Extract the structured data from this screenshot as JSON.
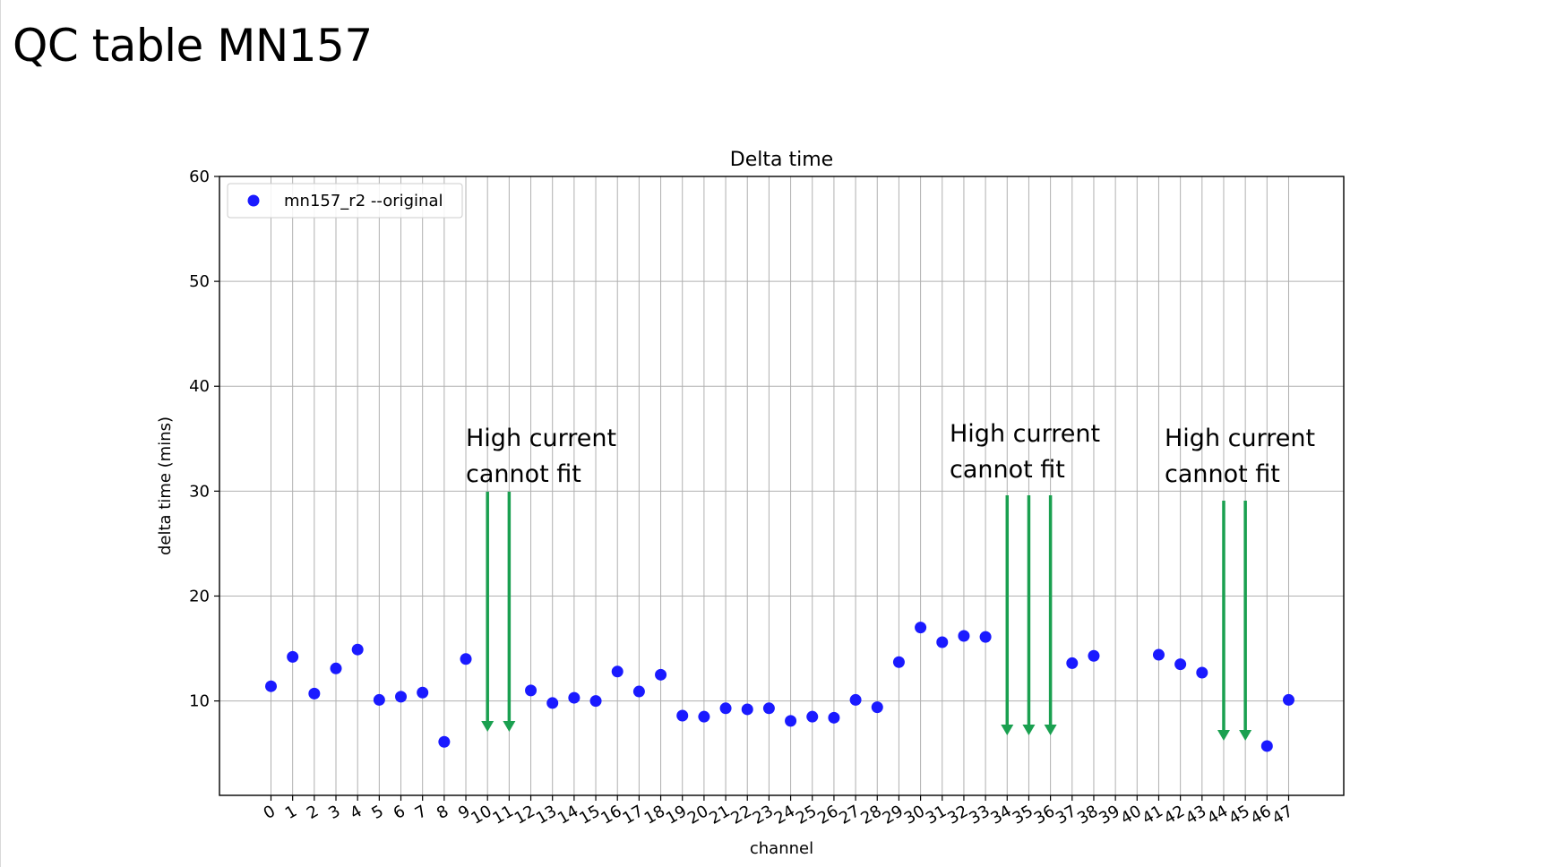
{
  "slide": {
    "title": "QC table MN157"
  },
  "colors": {
    "points": "#1a1aff",
    "arrows": "#1aa050",
    "grid": "#b0b0b0",
    "axes": "#000000"
  },
  "chart_data": {
    "type": "scatter",
    "title": "Delta time",
    "xlabel": "channel",
    "ylabel": "delta time (mins)",
    "ylim": [
      1,
      60
    ],
    "yticks": [
      10,
      20,
      30,
      40,
      50,
      60
    ],
    "xticks": [
      0,
      1,
      2,
      3,
      4,
      5,
      6,
      7,
      8,
      9,
      10,
      11,
      12,
      13,
      14,
      15,
      16,
      17,
      18,
      19,
      20,
      21,
      22,
      23,
      24,
      25,
      26,
      27,
      28,
      29,
      30,
      31,
      32,
      33,
      34,
      35,
      36,
      37,
      38,
      39,
      40,
      41,
      42,
      43,
      44,
      45,
      46,
      47
    ],
    "xtick_labels": [
      "0",
      "1",
      "2",
      "3",
      "4",
      "5",
      "6",
      "7",
      "8",
      "9",
      "10",
      "11",
      "12",
      "13",
      "14",
      "15",
      "16",
      "17",
      "18",
      "19",
      "20",
      "21",
      "22",
      "23",
      "24",
      "25",
      "26",
      "27",
      "28",
      "29",
      "30",
      "31",
      "32",
      "33",
      "34",
      "35",
      "36",
      "37",
      "38",
      "39",
      "40",
      "41",
      "42",
      "43",
      "44",
      "45",
      "46",
      "47"
    ],
    "grid": true,
    "legend": {
      "position": "top-left",
      "entries": [
        "mn157_r2 --original"
      ]
    },
    "series": [
      {
        "name": "mn157_r2 --original",
        "x": [
          0,
          1,
          2,
          3,
          4,
          5,
          6,
          7,
          8,
          9,
          12,
          13,
          14,
          15,
          16,
          17,
          18,
          19,
          20,
          21,
          22,
          23,
          24,
          25,
          26,
          27,
          28,
          29,
          30,
          31,
          32,
          33,
          37,
          38,
          41,
          42,
          43,
          46,
          47
        ],
        "y": [
          11.4,
          14.2,
          10.7,
          13.1,
          14.9,
          10.1,
          10.4,
          10.8,
          6.1,
          14.0,
          11.0,
          9.8,
          10.3,
          10.0,
          12.8,
          10.9,
          12.5,
          8.6,
          8.5,
          9.3,
          9.2,
          9.3,
          8.1,
          8.5,
          8.4,
          10.1,
          9.4,
          13.7,
          17.0,
          15.6,
          16.2,
          16.1,
          13.6,
          14.3,
          14.4,
          13.5,
          12.7,
          5.7,
          10.1
        ]
      }
    ],
    "annotations": [
      {
        "line1": "High current",
        "line2": "cannot fit",
        "arrows_at": [
          10,
          11
        ]
      },
      {
        "line1": "High current",
        "line2": "cannot fit",
        "arrows_at": [
          34,
          35,
          36
        ]
      },
      {
        "line1": "High current",
        "line2": "cannot fit",
        "arrows_at": [
          44,
          45
        ]
      }
    ]
  }
}
